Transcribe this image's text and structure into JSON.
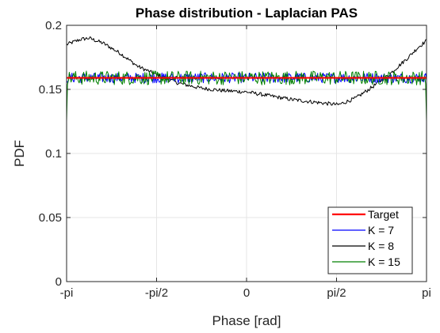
{
  "chart_data": {
    "type": "line",
    "title": "Phase distribution - Laplacian PAS",
    "xlabel": "Phase [rad]",
    "ylabel": "PDF",
    "xlim": [
      -3.14159,
      3.14159
    ],
    "ylim": [
      0,
      0.2
    ],
    "xticks": [
      {
        "value": -3.14159,
        "label": "-pi"
      },
      {
        "value": -1.5708,
        "label": "-pi/2"
      },
      {
        "value": 0,
        "label": "0"
      },
      {
        "value": 1.5708,
        "label": "pi/2"
      },
      {
        "value": 3.14159,
        "label": "pi"
      }
    ],
    "yticks": [
      {
        "value": 0,
        "label": "0"
      },
      {
        "value": 0.05,
        "label": "0.05"
      },
      {
        "value": 0.1,
        "label": "0.1"
      },
      {
        "value": 0.15,
        "label": "0.15"
      },
      {
        "value": 0.2,
        "label": "0.2"
      }
    ],
    "grid": true,
    "legend_position": "bottom-right",
    "series": [
      {
        "name": "Target",
        "color": "#ff0000",
        "x": [
          -3.14159,
          3.14159
        ],
        "y": [
          0.159,
          0.159
        ],
        "noise": 0
      },
      {
        "name": "K = 7",
        "color": "#0000ff",
        "x": [
          -3.14159,
          3.14159
        ],
        "y": [
          0.159,
          0.159
        ],
        "noise": 0.004
      },
      {
        "name": "K = 8",
        "color": "#000000",
        "x": [
          -3.14159,
          -2.9,
          -2.75,
          -2.5,
          -2.2,
          -1.9,
          -1.6,
          -1.2,
          -0.8,
          -0.4,
          0,
          0.4,
          0.8,
          1.2,
          1.6,
          1.9,
          2.2,
          2.5,
          2.8,
          3.0,
          3.14159
        ],
        "y": [
          0.185,
          0.189,
          0.19,
          0.186,
          0.178,
          0.168,
          0.162,
          0.155,
          0.151,
          0.149,
          0.148,
          0.145,
          0.142,
          0.14,
          0.138,
          0.143,
          0.152,
          0.162,
          0.174,
          0.183,
          0.188
        ],
        "noise": 0.0015
      },
      {
        "name": "K = 15",
        "color": "#008000",
        "x": [
          -3.14159,
          3.14159
        ],
        "y": [
          0.159,
          0.159
        ],
        "noise": 0.0055
      }
    ]
  }
}
